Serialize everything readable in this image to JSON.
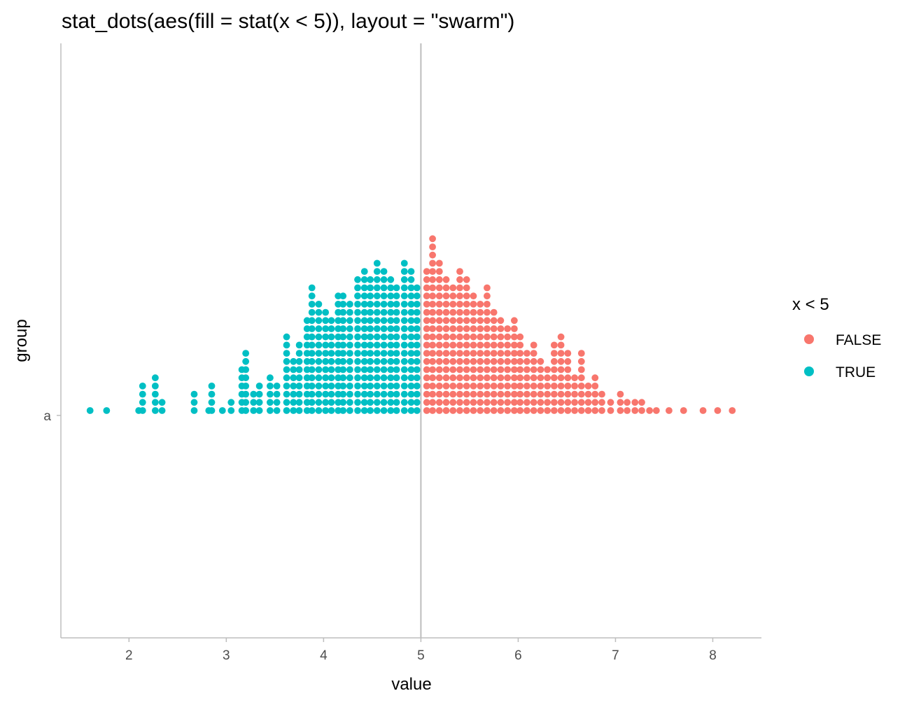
{
  "chart_data": {
    "type": "dotplot",
    "layout": "swarm",
    "title": "stat_dots(aes(fill = stat(x < 5)), layout = \"swarm\")",
    "xlabel": "value",
    "ylabel": "group",
    "categories": [
      "a"
    ],
    "xlim": [
      1.3,
      8.5
    ],
    "x_ticks": [
      2,
      3,
      4,
      5,
      6,
      7,
      8
    ],
    "reference_line_x": 5,
    "grid": false,
    "legend": {
      "title": "x < 5",
      "position": "right",
      "entries": [
        {
          "label": "FALSE",
          "color": "#F8766D"
        },
        {
          "label": "TRUE",
          "color": "#00BFC4"
        }
      ]
    },
    "bins": [
      [
        1.6,
        1
      ],
      [
        1.77,
        1
      ],
      [
        2.1,
        1
      ],
      [
        2.14,
        4
      ],
      [
        2.27,
        5
      ],
      [
        2.34,
        2
      ],
      [
        2.67,
        3
      ],
      [
        2.82,
        1
      ],
      [
        2.85,
        4
      ],
      [
        2.96,
        1
      ],
      [
        3.05,
        2
      ],
      [
        3.16,
        6
      ],
      [
        3.2,
        8
      ],
      [
        3.28,
        3
      ],
      [
        3.34,
        4
      ],
      [
        3.45,
        5
      ],
      [
        3.52,
        4
      ],
      [
        3.62,
        10
      ],
      [
        3.69,
        7
      ],
      [
        3.75,
        9
      ],
      [
        3.83,
        12
      ],
      [
        3.88,
        16
      ],
      [
        3.95,
        14
      ],
      [
        4.02,
        13
      ],
      [
        4.08,
        12
      ],
      [
        4.15,
        15
      ],
      [
        4.2,
        15
      ],
      [
        4.27,
        14
      ],
      [
        4.35,
        17
      ],
      [
        4.42,
        18
      ],
      [
        4.48,
        17
      ],
      [
        4.55,
        19
      ],
      [
        4.62,
        18
      ],
      [
        4.69,
        17
      ],
      [
        4.75,
        16
      ],
      [
        4.83,
        19
      ],
      [
        4.9,
        18
      ],
      [
        4.96,
        16
      ],
      [
        5.06,
        18
      ],
      [
        5.12,
        22
      ],
      [
        5.19,
        19
      ],
      [
        5.26,
        17
      ],
      [
        5.33,
        16
      ],
      [
        5.4,
        18
      ],
      [
        5.47,
        17
      ],
      [
        5.54,
        15
      ],
      [
        5.61,
        14
      ],
      [
        5.68,
        16
      ],
      [
        5.75,
        13
      ],
      [
        5.82,
        12
      ],
      [
        5.89,
        11
      ],
      [
        5.96,
        12
      ],
      [
        6.02,
        10
      ],
      [
        6.09,
        8
      ],
      [
        6.16,
        9
      ],
      [
        6.23,
        7
      ],
      [
        6.3,
        6
      ],
      [
        6.37,
        9
      ],
      [
        6.44,
        10
      ],
      [
        6.51,
        8
      ],
      [
        6.58,
        5
      ],
      [
        6.65,
        8
      ],
      [
        6.72,
        4
      ],
      [
        6.79,
        5
      ],
      [
        6.86,
        3
      ],
      [
        6.95,
        2
      ],
      [
        7.05,
        3
      ],
      [
        7.12,
        2
      ],
      [
        7.2,
        2
      ],
      [
        7.27,
        2
      ],
      [
        7.35,
        1
      ],
      [
        7.42,
        1
      ],
      [
        7.55,
        1
      ],
      [
        7.7,
        1
      ],
      [
        7.9,
        1
      ],
      [
        8.05,
        1
      ],
      [
        8.2,
        1
      ]
    ]
  }
}
